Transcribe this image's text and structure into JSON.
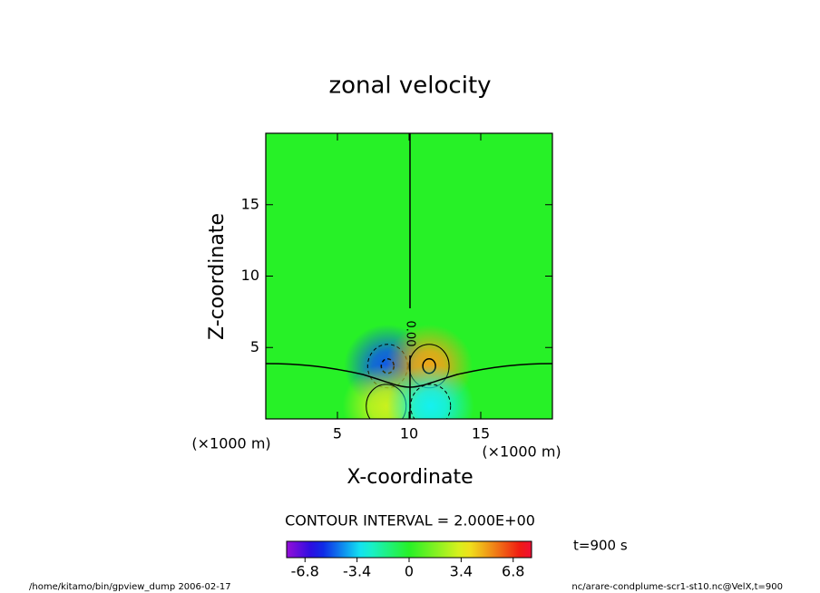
{
  "chart_data": {
    "type": "contour",
    "title": "zonal velocity",
    "xlabel": "X-coordinate",
    "ylabel": "Z-coordinate",
    "xunit": "(×1000 m)",
    "yunit": "(×1000 m)",
    "xlim": [
      0,
      20
    ],
    "ylim": [
      0,
      20
    ],
    "xticks": [
      5,
      10,
      15
    ],
    "yticks": [
      5,
      10,
      15
    ],
    "features": [
      {
        "x": 8.5,
        "z": 3.7,
        "value": -5
      },
      {
        "x": 11.4,
        "z": 3.7,
        "value": 5
      },
      {
        "x": 8.4,
        "z": 0.9,
        "value": 3
      },
      {
        "x": 11.5,
        "z": 0.9,
        "value": -3
      }
    ],
    "contour_label": "0.00",
    "contour_interval": "CONTOUR INTERVAL = 2.000E+00",
    "clim": [
      -8,
      8
    ],
    "cticks": [
      -6.8,
      -3.4,
      0,
      3.4,
      6.8
    ],
    "time_label": "t=900 s",
    "footer_left": "/home/kitamo/bin/gpview_dump  2006-02-17",
    "footer_right": "nc/arare-condplume-scr1-st10.nc@VelX,t=900"
  }
}
